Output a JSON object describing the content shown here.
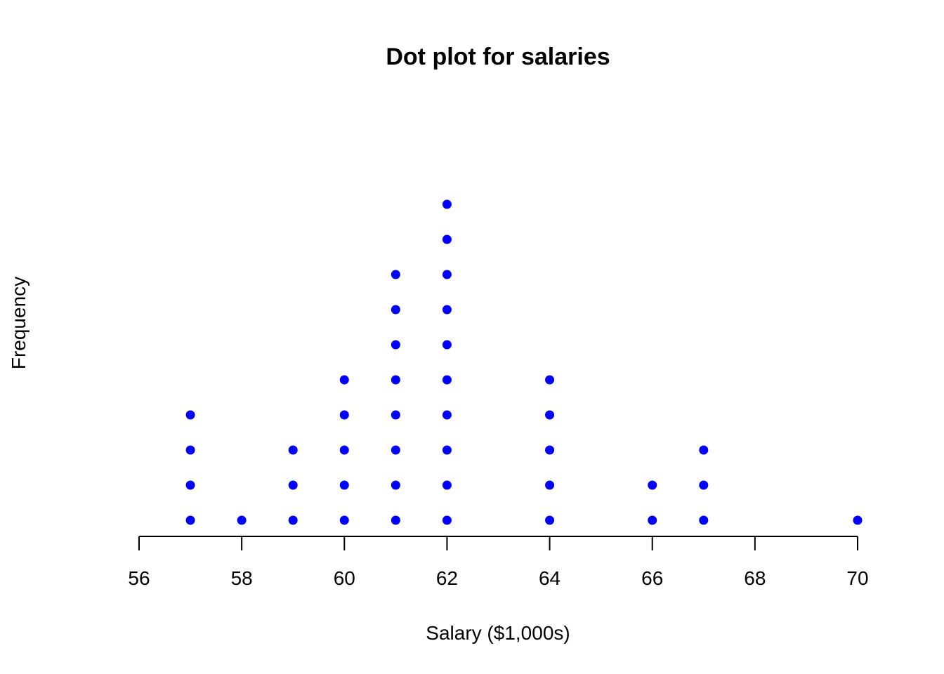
{
  "chart_data": {
    "type": "scatter",
    "subtype": "dot-plot",
    "title": "Dot plot for salaries",
    "xlabel": "Salary ($1,000s)",
    "ylabel": "Frequency",
    "xlim": [
      56,
      70
    ],
    "x_ticks": [
      56,
      58,
      60,
      62,
      64,
      66,
      68,
      70
    ],
    "y_axis_drawn": false,
    "grid": false,
    "legend": "none",
    "dot_color": "#0000ff",
    "series": [
      {
        "values": [
          {
            "x": 57,
            "count": 4
          },
          {
            "x": 58,
            "count": 1
          },
          {
            "x": 59,
            "count": 3
          },
          {
            "x": 60,
            "count": 5
          },
          {
            "x": 61,
            "count": 8
          },
          {
            "x": 62,
            "count": 10
          },
          {
            "x": 64,
            "count": 5
          },
          {
            "x": 66,
            "count": 2
          },
          {
            "x": 67,
            "count": 3
          },
          {
            "x": 70,
            "count": 1
          }
        ]
      }
    ]
  }
}
